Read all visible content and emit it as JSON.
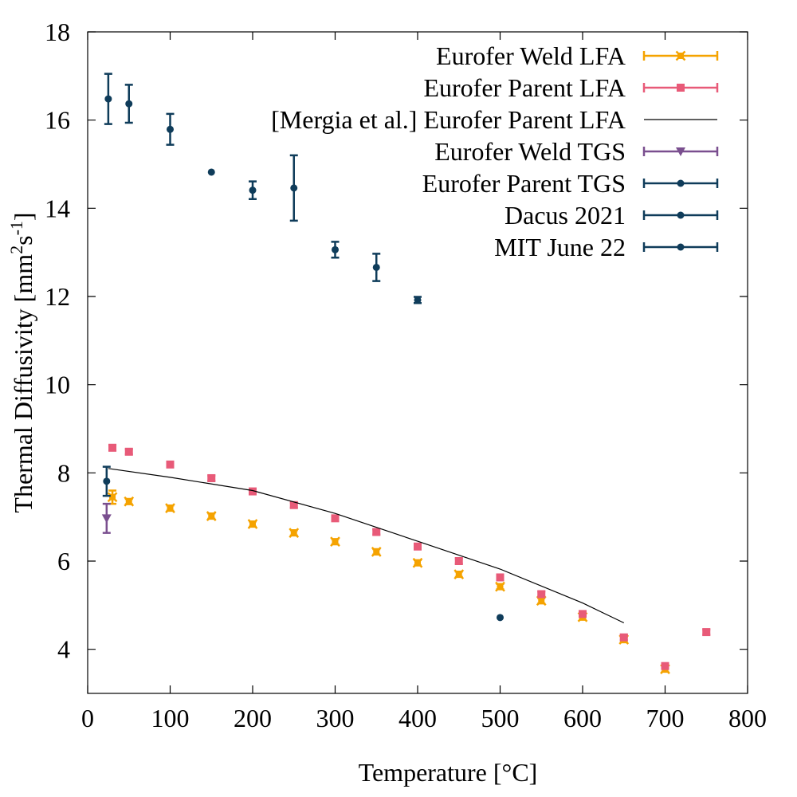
{
  "chart_data": {
    "type": "scatter",
    "xlabel": "Temperature [°C]",
    "ylabel_main": "Thermal Diffusivity [mm",
    "ylabel_sup1": "2",
    "ylabel_mid": "s",
    "ylabel_sup2": "-1",
    "ylabel_end": "]",
    "xlim": [
      0,
      800
    ],
    "ylim": [
      3,
      18
    ],
    "xticks": [
      0,
      100,
      200,
      300,
      400,
      500,
      600,
      700,
      800
    ],
    "yticks": [
      4,
      6,
      8,
      10,
      12,
      14,
      16,
      18
    ],
    "grid": false,
    "legend_position": "top-right",
    "series": [
      {
        "name": "Eurofer Weld LFA",
        "color": "#f5a300",
        "marker": "x-square",
        "points": [
          [
            30,
            7.45,
            0.15
          ],
          [
            50,
            7.35,
            0.06
          ],
          [
            100,
            7.2,
            0.06
          ],
          [
            150,
            7.02,
            0.06
          ],
          [
            200,
            6.84,
            0.06
          ],
          [
            250,
            6.64,
            0.06
          ],
          [
            300,
            6.44,
            0.06
          ],
          [
            350,
            6.21,
            0.06
          ],
          [
            400,
            5.96,
            0.06
          ],
          [
            450,
            5.7,
            0.06
          ],
          [
            500,
            5.42,
            0.06
          ],
          [
            550,
            5.1,
            0.06
          ],
          [
            600,
            4.73,
            0.06
          ],
          [
            650,
            4.22,
            0.06
          ],
          [
            700,
            3.55,
            0.06
          ]
        ]
      },
      {
        "name": "Eurofer Parent LFA",
        "color": "#e85a78",
        "marker": "square",
        "points": [
          [
            30,
            8.57,
            0.06
          ],
          [
            50,
            8.48,
            0.06
          ],
          [
            100,
            8.19,
            0.06
          ],
          [
            150,
            7.88,
            0.06
          ],
          [
            200,
            7.58,
            0.06
          ],
          [
            250,
            7.27,
            0.06
          ],
          [
            300,
            6.97,
            0.06
          ],
          [
            350,
            6.66,
            0.06
          ],
          [
            400,
            6.33,
            0.06
          ],
          [
            450,
            6.0,
            0.06
          ],
          [
            500,
            5.63,
            0.06
          ],
          [
            550,
            5.25,
            0.06
          ],
          [
            600,
            4.8,
            0.06
          ],
          [
            650,
            4.27,
            0.06
          ],
          [
            700,
            3.62,
            0.06
          ],
          [
            750,
            4.39,
            0.06
          ]
        ]
      },
      {
        "name": "[Mergia et al.] Eurofer Parent LFA",
        "color": "#000000",
        "marker": "line",
        "points": [
          [
            25,
            8.1
          ],
          [
            100,
            7.9
          ],
          [
            200,
            7.6
          ],
          [
            300,
            7.08
          ],
          [
            400,
            6.45
          ],
          [
            500,
            5.82
          ],
          [
            600,
            5.05
          ],
          [
            650,
            4.6
          ]
        ]
      },
      {
        "name": "Eurofer Weld TGS",
        "color": "#7a4f8f",
        "marker": "triangle-down",
        "points": [
          [
            23,
            6.97,
            0.33
          ]
        ]
      },
      {
        "name": "Eurofer Parent TGS",
        "color": "#0f3c5a",
        "marker": "circle",
        "points": [
          [
            23,
            7.81,
            0.33
          ]
        ]
      },
      {
        "name": "Dacus 2021",
        "color": "#0f3c5a",
        "marker": "circle",
        "points": [
          [
            25,
            16.48,
            0.57
          ],
          [
            50,
            16.37,
            0.43
          ],
          [
            100,
            15.79,
            0.35
          ],
          [
            150,
            14.82,
            0.04
          ],
          [
            200,
            14.41,
            0.2
          ],
          [
            250,
            14.46,
            0.74
          ],
          [
            300,
            13.06,
            0.18
          ],
          [
            350,
            12.66,
            0.31
          ],
          [
            400,
            11.92,
            0.07
          ]
        ]
      },
      {
        "name": "MIT June 22",
        "color": "#0f3c5a",
        "marker": "circle",
        "points": [
          [
            500,
            4.72,
            0.04
          ]
        ]
      }
    ]
  }
}
